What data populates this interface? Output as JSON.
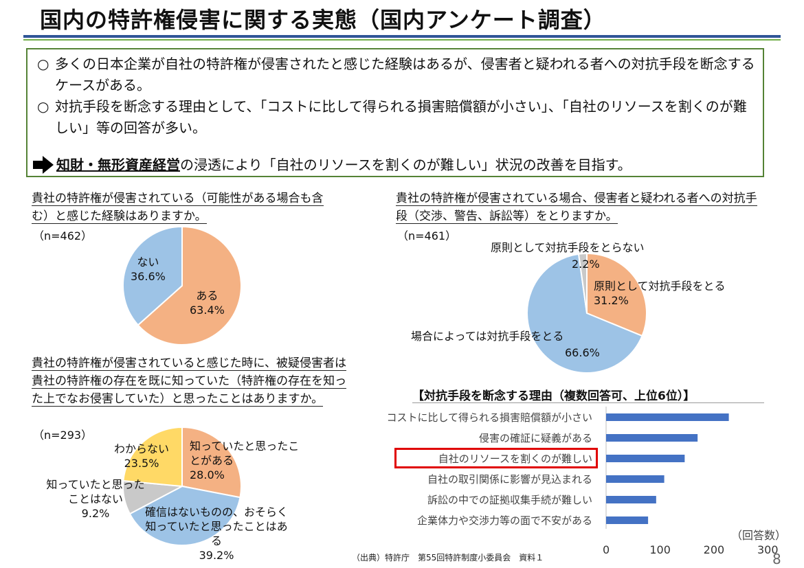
{
  "title": "国内の特許権侵害に関する実態（国内アンケート調査）",
  "summary": {
    "bullet_mark": "○",
    "bullet1": "多くの日本企業が自社の特許権が侵害されたと感じた経験はあるが、侵害者と疑われる者への対抗手段を断念するケースがある。",
    "bullet2": "対抗手段を断念する理由として、「コストに比して得られる損害賠償額が小さい」、「自社のリソースを割くのが難しい」等の回答が多い。",
    "conclusion_emphasis": "知財・無形資産経営",
    "conclusion_rest": "の浸透により「自社のリソースを割くのが難しい」状況の改善を目指す。",
    "arrow_icon": "right-arrow-icon"
  },
  "q1": {
    "question": "貴社の特許権が侵害されている（可能性がある場合も含む）と感じた経験はありますか。",
    "n": "（n=462）"
  },
  "q2": {
    "question": "貴社の特許権が侵害されている場合、侵害者と疑われる者への対抗手段（交渉、警告、訴訟等）をとりますか。",
    "n": "（n=461）"
  },
  "q3": {
    "question": "貴社の特許権が侵害されていると感じた時に、被疑侵害者は貴社の特許権の存在を既に知っていた（特許権の存在を知った上でなお侵害していた）と思ったことはありますか。",
    "n": "（n=293）"
  },
  "reasons_title": "【対抗手段を断念する理由（複数回答可、上位6位）】",
  "unit": "（回答数）",
  "source": "（出典）特許庁　第55回特許制度小委員会　資料１",
  "page_number": "8",
  "colors": {
    "orange": "#f4b183",
    "blue": "#9dc3e6",
    "gray": "#c9c9c9",
    "yellow": "#ffd966",
    "bar": "#4472c4",
    "highlight": "#e00000"
  },
  "chart_data": [
    {
      "type": "pie",
      "slices": [
        {
          "label": "ある",
          "value": 63.4,
          "value_label": "63.4%",
          "color": "#f4b183"
        },
        {
          "label": "ない",
          "value": 36.6,
          "value_label": "36.6%",
          "color": "#9dc3e6"
        }
      ]
    },
    {
      "type": "pie",
      "slices": [
        {
          "label": "原則として対抗手段をとる",
          "value": 31.2,
          "value_label": "31.2%",
          "color": "#f4b183"
        },
        {
          "label": "場合によっては対抗手段をとる",
          "value": 66.6,
          "value_label": "66.6%",
          "color": "#9dc3e6"
        },
        {
          "label": "原則として対抗手段をとらない",
          "value": 2.2,
          "value_label": "2.2%",
          "color": "#c9c9c9"
        }
      ]
    },
    {
      "type": "pie",
      "slices": [
        {
          "label": "知っていたと思ったことがある",
          "value": 28.0,
          "value_label": "28.0%",
          "color": "#f4b183"
        },
        {
          "label": "確信はないものの、おそらく知っていたと思ったことはある",
          "value": 39.2,
          "value_label": "39.2%",
          "color": "#9dc3e6"
        },
        {
          "label": "知っていたと思ったことはない",
          "value": 9.2,
          "value_label": "9.2%",
          "color": "#c9c9c9"
        },
        {
          "label": "わからない",
          "value": 23.5,
          "value_label": "23.5%",
          "color": "#ffd966"
        }
      ]
    },
    {
      "type": "bar",
      "orientation": "horizontal",
      "categories": [
        "コストに比して得られる損害賠償額が小さい",
        "侵害の確証に疑義がある",
        "自社のリソースを割くのが難しい",
        "自社の取引関係に影響が見込まれる",
        "訴訟の中での証拠収集手続が難しい",
        "企業体力や交渉力等の面で不安がある"
      ],
      "values": [
        228,
        170,
        146,
        108,
        93,
        78
      ],
      "xlim": [
        0,
        300
      ],
      "xticks": [
        0,
        100,
        200,
        300
      ],
      "highlighted_category": "自社のリソースを割くのが難しい"
    }
  ]
}
